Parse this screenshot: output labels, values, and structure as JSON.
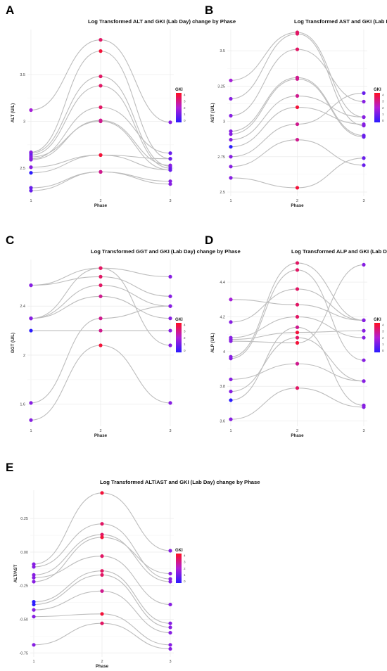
{
  "colors": {
    "line": "#bdbdbd",
    "grid": "#ececec",
    "gki_low": "#2a1bff",
    "gki_mid": "#b01fd6",
    "gki_high": "#ff1020"
  },
  "chart_data": [
    {
      "panel_label": "A",
      "type": "line",
      "title": "Log Transformed ALT and GKI (Lab Day) change by Phase",
      "xlabel": "Phase",
      "ylabel": "ALT (U/L)",
      "x_ticks": [
        "1",
        "2",
        "3"
      ],
      "y_ticks": [
        2.5,
        3.0,
        3.5
      ],
      "ylim": [
        2.2,
        3.98
      ],
      "legend": {
        "title": "GKI",
        "ticks": [
          0,
          1,
          2,
          3,
          4
        ],
        "position": "right"
      },
      "series": [
        {
          "values": [
            3.12,
            3.87,
            2.99
          ],
          "gki": [
            2.0,
            3.5,
            1.5
          ]
        },
        {
          "values": [
            2.67,
            3.75,
            2.6
          ],
          "gki": [
            1.5,
            4.0,
            1.5
          ]
        },
        {
          "values": [
            2.66,
            3.48,
            2.52
          ],
          "gki": [
            1.5,
            3.5,
            1.0
          ]
        },
        {
          "values": [
            2.64,
            3.38,
            2.5
          ],
          "gki": [
            1.0,
            3.5,
            1.0
          ]
        },
        {
          "values": [
            2.6,
            3.15,
            2.66
          ],
          "gki": [
            1.5,
            3.5,
            1.0
          ]
        },
        {
          "values": [
            2.59,
            3.01,
            2.53
          ],
          "gki": [
            1.5,
            3.0,
            1.5
          ]
        },
        {
          "values": [
            2.62,
            3.0,
            2.48
          ],
          "gki": [
            1.5,
            3.0,
            1.0
          ]
        },
        {
          "values": [
            2.51,
            2.64,
            2.6
          ],
          "gki": [
            1.5,
            4.0,
            1.0
          ]
        },
        {
          "values": [
            2.45,
            2.64,
            2.48
          ],
          "gki": [
            0.0,
            4.0,
            1.0
          ]
        },
        {
          "values": [
            2.29,
            2.46,
            2.33
          ],
          "gki": [
            1.0,
            3.0,
            1.5
          ]
        },
        {
          "values": [
            2.26,
            2.46,
            2.36
          ],
          "gki": [
            1.0,
            3.0,
            1.5
          ]
        }
      ]
    },
    {
      "panel_label": "B",
      "type": "line",
      "title": "Log Transformed AST and GKI (Lab Day) change by Phase",
      "xlabel": "Phase",
      "ylabel": "AST (U/L)",
      "x_ticks": [
        "1",
        "2",
        "3"
      ],
      "y_ticks": [
        2.5,
        2.75,
        3.0,
        3.25,
        3.5
      ],
      "ylim": [
        2.47,
        3.65
      ],
      "legend": {
        "title": "GKI",
        "ticks": [
          0,
          1,
          2,
          3,
          4
        ],
        "position": "right"
      },
      "series": [
        {
          "values": [
            3.29,
            3.63,
            3.03
          ],
          "gki": [
            2.0,
            3.5,
            1.5
          ]
        },
        {
          "values": [
            3.16,
            3.62,
            2.97
          ],
          "gki": [
            1.5,
            3.5,
            1.5
          ]
        },
        {
          "values": [
            3.04,
            3.51,
            3.14
          ],
          "gki": [
            1.5,
            3.5,
            1.5
          ]
        },
        {
          "values": [
            2.93,
            3.31,
            2.9
          ],
          "gki": [
            1.5,
            3.0,
            1.0
          ]
        },
        {
          "values": [
            2.91,
            3.3,
            2.89
          ],
          "gki": [
            1.5,
            3.0,
            1.0
          ]
        },
        {
          "values": [
            2.87,
            3.18,
            3.03
          ],
          "gki": [
            1.5,
            3.0,
            1.5
          ]
        },
        {
          "values": [
            2.82,
            3.1,
            2.98
          ],
          "gki": [
            0.0,
            4.0,
            1.5
          ]
        },
        {
          "values": [
            2.75,
            2.98,
            3.2
          ],
          "gki": [
            1.5,
            3.0,
            1.0
          ]
        },
        {
          "values": [
            2.68,
            2.87,
            2.69
          ],
          "gki": [
            1.5,
            3.0,
            1.0
          ]
        },
        {
          "values": [
            2.6,
            2.53,
            2.74
          ],
          "gki": [
            1.5,
            4.0,
            1.0
          ]
        }
      ]
    },
    {
      "panel_label": "C",
      "type": "line",
      "title": "Log Transformed GGT and GKI (Lab Day) change by Phase",
      "xlabel": "Phase",
      "ylabel": "GGT (U/L)",
      "x_ticks": [
        "1",
        "2",
        "3"
      ],
      "y_ticks": [
        1.6,
        2.0,
        2.4
      ],
      "ylim": [
        1.42,
        2.78
      ],
      "legend": {
        "title": "GKI",
        "ticks": [
          0,
          1,
          2,
          3,
          4
        ],
        "position": "right"
      },
      "series": [
        {
          "values": [
            2.57,
            2.71,
            2.64
          ],
          "gki": [
            1.5,
            4.0,
            1.5
          ]
        },
        {
          "values": [
            2.57,
            2.64,
            2.48
          ],
          "gki": [
            1.5,
            3.5,
            1.5
          ]
        },
        {
          "values": [
            2.3,
            2.57,
            2.4
          ],
          "gki": [
            1.5,
            3.5,
            1.5
          ]
        },
        {
          "values": [
            2.3,
            2.48,
            2.3
          ],
          "gki": [
            1.5,
            3.0,
            1.5
          ]
        },
        {
          "values": [
            2.2,
            2.2,
            2.2
          ],
          "gki": [
            0.0,
            3.0,
            1.5
          ]
        },
        {
          "values": [
            1.61,
            2.3,
            2.4
          ],
          "gki": [
            1.5,
            3.0,
            1.5
          ]
        },
        {
          "values": [
            1.47,
            2.08,
            1.61
          ],
          "gki": [
            1.5,
            4.0,
            1.5
          ]
        },
        {
          "values": [
            2.3,
            2.71,
            2.08
          ],
          "gki": [
            1.5,
            3.5,
            1.5
          ]
        }
      ]
    },
    {
      "panel_label": "D",
      "type": "line",
      "title": "Log Transformed ALP and GKI (Lab Day) change by Phase",
      "xlabel": "Phase",
      "ylabel": "ALP (U/L)",
      "x_ticks": [
        "1",
        "2",
        "3"
      ],
      "y_ticks": [
        3.6,
        3.8,
        4.0,
        4.2,
        4.4
      ],
      "ylim": [
        3.57,
        4.53
      ],
      "legend": {
        "title": "GKI",
        "ticks": [
          0,
          1,
          2,
          3,
          4
        ],
        "position": "right"
      },
      "series": [
        {
          "values": [
            4.3,
            4.27,
            4.18
          ],
          "gki": [
            2.0,
            3.5,
            1.5
          ]
        },
        {
          "values": [
            4.17,
            4.36,
            4.18
          ],
          "gki": [
            1.5,
            3.5,
            1.5
          ]
        },
        {
          "values": [
            4.08,
            4.2,
            4.08
          ],
          "gki": [
            1.5,
            3.5,
            1.5
          ]
        },
        {
          "values": [
            4.07,
            4.11,
            4.12
          ],
          "gki": [
            1.5,
            4.0,
            1.5
          ]
        },
        {
          "values": [
            4.06,
            4.05,
            4.5
          ],
          "gki": [
            1.5,
            4.0,
            1.5
          ]
        },
        {
          "values": [
            3.97,
            4.51,
            4.18
          ],
          "gki": [
            1.5,
            3.5,
            1.5
          ]
        },
        {
          "values": [
            3.96,
            4.47,
            3.95
          ],
          "gki": [
            1.5,
            3.5,
            1.5
          ]
        },
        {
          "values": [
            3.84,
            3.93,
            3.83
          ],
          "gki": [
            1.5,
            3.0,
            1.5
          ]
        },
        {
          "values": [
            3.77,
            4.08,
            3.83
          ],
          "gki": [
            1.5,
            3.5,
            1.5
          ]
        },
        {
          "values": [
            3.72,
            4.14,
            3.69
          ],
          "gki": [
            0.0,
            3.0,
            1.5
          ]
        },
        {
          "values": [
            3.61,
            3.79,
            3.68
          ],
          "gki": [
            1.5,
            3.5,
            1.5
          ]
        }
      ]
    },
    {
      "panel_label": "E",
      "type": "line",
      "title": "Log Transformed ALT/AST and GKI (Lab Day) change by Phase",
      "xlabel": "Phase",
      "ylabel": "ALT/AST",
      "x_ticks": [
        "1",
        "2",
        "3"
      ],
      "y_ticks": [
        -0.75,
        -0.5,
        -0.25,
        0.0,
        0.25
      ],
      "y_tick_labels": [
        "-0.75",
        "-0.50",
        "-0.25",
        "0.00",
        "0.25"
      ],
      "ylim": [
        -0.78,
        0.46
      ],
      "legend": {
        "title": "GKI",
        "ticks": [
          0,
          1,
          2,
          3,
          4
        ],
        "position": "right"
      },
      "series": [
        {
          "values": [
            -0.09,
            0.44,
            0.01
          ],
          "gki": [
            1.5,
            4.0,
            1.5
          ]
        },
        {
          "values": [
            -0.11,
            0.21,
            -0.2
          ],
          "gki": [
            1.5,
            3.5,
            1.5
          ]
        },
        {
          "values": [
            -0.17,
            0.13,
            -0.22
          ],
          "gki": [
            1.5,
            3.5,
            1.5
          ]
        },
        {
          "values": [
            -0.22,
            0.11,
            -0.16
          ],
          "gki": [
            1.5,
            4.0,
            1.5
          ]
        },
        {
          "values": [
            -0.19,
            -0.03,
            -0.39
          ],
          "gki": [
            1.5,
            3.5,
            1.5
          ]
        },
        {
          "values": [
            -0.37,
            -0.14,
            -0.53
          ],
          "gki": [
            0.0,
            3.5,
            1.5
          ]
        },
        {
          "values": [
            -0.39,
            -0.17,
            -0.56
          ],
          "gki": [
            0.0,
            3.5,
            1.5
          ]
        },
        {
          "values": [
            -0.43,
            -0.29,
            -0.6
          ],
          "gki": [
            1.5,
            3.0,
            1.5
          ]
        },
        {
          "values": [
            -0.48,
            -0.46,
            -0.69
          ],
          "gki": [
            1.5,
            4.0,
            1.5
          ]
        },
        {
          "values": [
            -0.69,
            -0.53,
            -0.72
          ],
          "gki": [
            1.5,
            3.5,
            1.5
          ]
        }
      ]
    }
  ]
}
